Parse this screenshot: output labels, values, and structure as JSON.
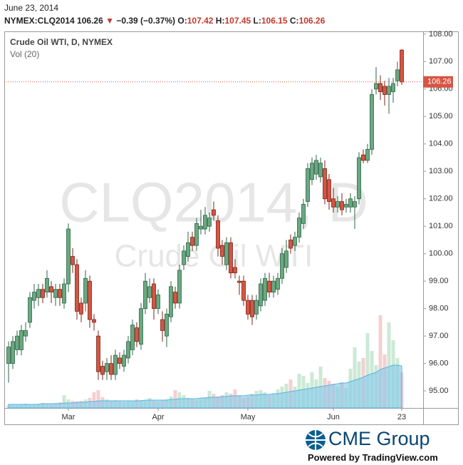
{
  "chart_data": {
    "type": "candlestick",
    "date": "June 23, 2014",
    "symbol": "NYMEX:CLQ2014",
    "change": "−0.39 (−0.37%)",
    "ohlc_labels": [
      "O:",
      "H:",
      "L:",
      "C:"
    ],
    "legend": "Crude Oil WTI, D, NYMEX",
    "volume_label": "Vol (20)",
    "watermark": [
      "CLQ2014, D",
      "Crude Oil WTI"
    ],
    "up_color": "#6aa882",
    "down_color": "#d75442",
    "volume_up_color": "#bfe3cc",
    "volume_down_color": "#f3c4c4",
    "volume_ma_color": "#7ec8ea",
    "open": [
      96.0,
      96.0,
      96.5,
      96.5,
      97.0,
      97.5,
      98.3,
      98.4,
      98.7,
      98.6,
      98.8,
      98.4,
      98.7,
      98.2,
      98.9,
      99.9,
      99.6,
      98.2,
      98.2,
      99.0,
      97.6,
      97.0,
      95.9,
      95.7,
      96.0,
      95.6,
      96.2,
      95.9,
      96.2,
      96.5,
      97.3,
      96.7,
      98.0,
      98.4,
      98.9,
      98.0,
      97.6,
      97.0,
      97.7,
      98.6,
      98.2,
      99.6,
      99.9,
      100.6,
      100.3,
      100.9,
      100.9,
      101.0,
      101.6,
      101.2,
      100.3,
      99.6,
      100.4,
      99.5,
      99.0,
      99.0,
      98.3,
      98.3,
      97.8,
      98.1,
      98.3,
      99.0,
      98.6,
      98.7,
      99.1,
      99.5,
      100.5,
      100.3,
      100.6,
      101.1,
      101.9,
      102.7,
      102.9,
      102.8,
      103.1,
      102.7,
      102.0,
      101.7,
      101.9,
      101.7,
      101.7,
      101.7,
      102.0,
      103.6,
      103.4,
      103.8,
      106.0,
      106.2,
      106.1,
      105.8,
      105.9,
      106.3,
      107.42
    ],
    "high": [
      96.8,
      97.0,
      97.2,
      97.4,
      97.5,
      98.6,
      98.9,
      98.9,
      98.9,
      99.4,
      99.0,
      98.9,
      98.9,
      99.1,
      101.1,
      100.2,
      99.8,
      98.4,
      99.4,
      99.2,
      97.8,
      97.2,
      96.1,
      96.2,
      96.3,
      96.5,
      96.4,
      96.5,
      97.0,
      97.6,
      97.5,
      98.2,
      99.3,
      99.1,
      99.1,
      98.7,
      97.9,
      98.0,
      99.0,
      98.8,
      99.6,
      100.3,
      100.8,
      100.8,
      101.3,
      101.6,
      101.7,
      101.5,
      101.9,
      101.4,
      100.5,
      100.6,
      100.6,
      99.8,
      99.2,
      99.2,
      98.5,
      98.5,
      98.5,
      99.1,
      99.3,
      99.3,
      99.2,
      99.3,
      100.2,
      100.5,
      100.7,
      100.8,
      101.5,
      102.0,
      103.3,
      103.5,
      103.6,
      103.5,
      103.4,
      102.9,
      102.4,
      102.1,
      102.2,
      102.0,
      102.2,
      102.1,
      103.7,
      103.8,
      104.0,
      106.0,
      106.8,
      106.5,
      106.3,
      106.4,
      106.4,
      107.0,
      107.45
    ],
    "low": [
      95.3,
      95.8,
      96.3,
      96.3,
      96.8,
      97.3,
      98.0,
      98.1,
      98.2,
      98.4,
      98.2,
      98.1,
      98.1,
      98.0,
      98.6,
      99.3,
      97.6,
      97.5,
      97.9,
      97.3,
      97.2,
      95.4,
      95.4,
      95.4,
      95.4,
      95.4,
      95.8,
      95.7,
      96.0,
      96.3,
      96.6,
      96.5,
      97.8,
      98.2,
      97.6,
      97.8,
      96.8,
      96.6,
      97.5,
      98.0,
      98.0,
      99.4,
      99.7,
      100.1,
      100.1,
      100.7,
      100.7,
      100.8,
      101.2,
      99.9,
      99.6,
      99.4,
      99.1,
      99.1,
      98.5,
      98.1,
      97.6,
      97.4,
      97.6,
      97.9,
      98.1,
      98.4,
      98.4,
      98.5,
      98.9,
      99.3,
      100.0,
      100.1,
      100.4,
      100.9,
      101.7,
      102.5,
      102.7,
      102.6,
      101.8,
      101.6,
      101.5,
      101.5,
      101.4,
      101.5,
      101.5,
      100.9,
      101.8,
      103.3,
      103.3,
      103.6,
      105.8,
      105.6,
      105.4,
      105.1,
      105.5,
      106.1,
      106.15
    ],
    "close": [
      96.6,
      96.8,
      97.0,
      97.2,
      97.2,
      98.4,
      98.6,
      98.7,
      98.4,
      99.1,
      98.6,
      98.7,
      98.4,
      98.9,
      100.9,
      99.6,
      97.9,
      97.8,
      99.1,
      97.6,
      97.5,
      95.7,
      95.6,
      96.0,
      95.6,
      96.3,
      96.0,
      96.3,
      96.8,
      97.4,
      96.8,
      98.0,
      99.0,
      98.8,
      98.0,
      98.5,
      97.2,
      97.8,
      98.8,
      98.2,
      99.4,
      100.1,
      100.4,
      100.3,
      101.1,
      101.0,
      101.4,
      101.3,
      101.4,
      100.2,
      99.9,
      100.4,
      99.3,
      99.3,
      98.95,
      98.3,
      97.8,
      97.7,
      98.3,
      98.9,
      99.1,
      98.6,
      99.0,
      99.1,
      100.0,
      100.1,
      100.2,
      100.6,
      101.3,
      101.8,
      103.1,
      103.3,
      103.4,
      103.3,
      102.0,
      101.9,
      101.7,
      101.9,
      101.6,
      101.8,
      102.0,
      101.9,
      103.5,
      103.4,
      103.8,
      105.8,
      106.2,
      105.9,
      105.8,
      106.1,
      106.2,
      106.7,
      106.26
    ],
    "volume": [
      4,
      5,
      4,
      5,
      6,
      5,
      5,
      6,
      7,
      6,
      5,
      7,
      8,
      18,
      12,
      10,
      9,
      10,
      12,
      14,
      22,
      25,
      15,
      12,
      10,
      11,
      9,
      8,
      10,
      9,
      12,
      11,
      10,
      14,
      10,
      9,
      10,
      12,
      16,
      25,
      22,
      18,
      14,
      12,
      11,
      13,
      15,
      24,
      20,
      16,
      18,
      22,
      20,
      26,
      18,
      14,
      16,
      20,
      24,
      25,
      22,
      18,
      20,
      26,
      30,
      34,
      40,
      30,
      48,
      45,
      35,
      50,
      40,
      58,
      42,
      38,
      34,
      30,
      36,
      28,
      55,
      85,
      65,
      70,
      105,
      80,
      60,
      130,
      75,
      120,
      95,
      70,
      50
    ],
    "volume_ma": [
      5,
      5,
      5,
      5,
      5,
      5,
      5,
      5,
      6,
      6,
      6,
      6,
      6,
      7,
      7,
      7,
      8,
      8,
      8,
      9,
      9,
      10,
      10,
      10,
      10,
      10,
      10,
      10,
      10,
      10,
      10,
      10,
      11,
      11,
      11,
      11,
      11,
      11,
      12,
      12,
      13,
      13,
      13,
      13,
      13,
      14,
      14,
      15,
      15,
      15,
      16,
      16,
      17,
      17,
      17,
      17,
      18,
      18,
      18,
      19,
      19,
      19,
      20,
      20,
      21,
      22,
      23,
      24,
      25,
      26,
      27,
      28,
      29,
      30,
      31,
      32,
      33,
      34,
      35,
      35,
      37,
      39,
      41,
      43,
      46,
      48,
      50,
      54,
      56,
      58,
      60,
      60,
      59
    ],
    "xlim": [
      -1,
      97
    ],
    "xticks": [
      {
        "value": 14,
        "label": "Mar"
      },
      {
        "value": 35,
        "label": "Apr"
      },
      {
        "value": 56,
        "label": "May"
      },
      {
        "value": 76,
        "label": "Jun"
      },
      {
        "value": 92,
        "label": "23"
      }
    ],
    "ylim": [
      94.38,
      108.1
    ],
    "yticks": [
      {
        "value": 95,
        "label": "95.00"
      },
      {
        "value": 96,
        "label": "96.00"
      },
      {
        "value": 97,
        "label": "97.00"
      },
      {
        "value": 98,
        "label": "98.00"
      },
      {
        "value": 99,
        "label": "99.00"
      },
      {
        "value": 100,
        "label": "100.00"
      },
      {
        "value": 101,
        "label": "101.00"
      },
      {
        "value": 102,
        "label": "102.00"
      },
      {
        "value": 103,
        "label": "103.00"
      },
      {
        "value": 104,
        "label": "104.00"
      },
      {
        "value": 105,
        "label": "105.00"
      },
      {
        "value": 106,
        "label": "106.00"
      },
      {
        "value": 107,
        "label": "107.00"
      },
      {
        "value": 108,
        "label": "108.00"
      }
    ],
    "grid": false
  },
  "footer": {
    "brand": "CME Group",
    "powered_by": "Powered by TradingView.com"
  }
}
